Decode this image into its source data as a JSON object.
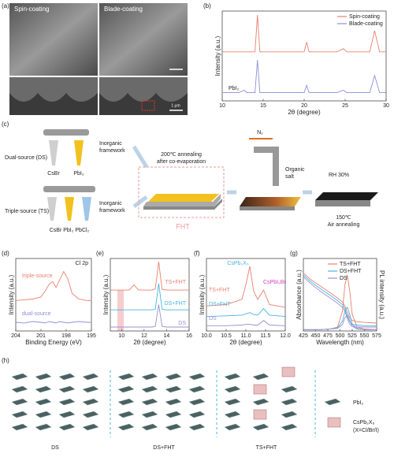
{
  "panel_labels": [
    "(a)",
    "(b)",
    "(c)",
    "(d)",
    "(e)",
    "(f)",
    "(g)",
    "(h)"
  ],
  "sem": {
    "spin": "Spin-coating",
    "blade": "Blade-coating",
    "scale": "1 μm"
  },
  "schematic": {
    "dual": "Dual-source (DS)",
    "triple": "Triple-source (TS)",
    "csbr": "CsBr",
    "pbi2": "PbI₂",
    "ts_precursors": "CsBr PbI₂ PbCl₂",
    "inorganic": "Inorganic",
    "framework": "framework",
    "anneal1": "200℃  annealing",
    "anneal2": "after co-evaporation",
    "fht": "FHT",
    "n2": "N₂",
    "organic": "Organic",
    "salt": "salt",
    "rh": "RH 30%",
    "temp": "150℃",
    "air": "Air annealing"
  },
  "structures": {
    "ds": "DS",
    "dsfht": "DS+FHT",
    "tsfht": "TS+FHT",
    "pbi2": "PbI₂",
    "cspb": "CsPb₂X₅",
    "x": "(X=Cl/Br/I)"
  },
  "chart_data": [
    {
      "type": "line",
      "x_label": "2θ (degree)",
      "y_label": "Intensity (a.u.)",
      "xlim": [
        10,
        30
      ],
      "xticks": [
        10,
        15,
        20,
        25,
        30
      ],
      "ylim": [
        0,
        110
      ],
      "legend": "upper right",
      "x": [
        10,
        12,
        12.7,
        13,
        14,
        14.3,
        14.6,
        15,
        20,
        20.3,
        20.6,
        24,
        24.8,
        25.2,
        28,
        28.6,
        29.2,
        30
      ],
      "series": [
        {
          "name": "Spin-coating",
          "color": "#e8806e",
          "values": [
            60,
            60,
            60,
            60,
            60,
            105,
            60,
            60,
            60,
            72,
            60,
            60,
            64,
            60,
            60,
            86,
            60,
            60
          ]
        },
        {
          "name": "Blade-coating",
          "color": "#8d8fd4",
          "values": [
            10,
            10,
            13,
            10,
            10,
            50,
            10,
            10,
            10,
            19,
            10,
            10,
            13,
            10,
            10,
            31,
            10,
            10
          ]
        }
      ],
      "annotations": [
        "PbI₂"
      ]
    },
    {
      "type": "line",
      "x_label": "Binding Energy (eV)",
      "y_label": "Intensity (a.u.)",
      "xlim": [
        204,
        195
      ],
      "xticks": [
        204,
        201,
        198,
        195
      ],
      "ylim": [
        0,
        100
      ],
      "x": [
        204,
        203,
        202,
        201,
        200.5,
        200,
        199.6,
        199.2,
        198.8,
        198.3,
        197.8,
        197.3,
        196.5,
        195.5,
        195
      ],
      "series": [
        {
          "name": "triple-source",
          "color": "#e8806e",
          "values": [
            42,
            43,
            44,
            47,
            55,
            65,
            68,
            60,
            70,
            82,
            72,
            52,
            44,
            42,
            42
          ]
        },
        {
          "name": "dual-source",
          "color": "#8d8fd4",
          "values": [
            12,
            11,
            13,
            12,
            11,
            13,
            12,
            11,
            13,
            12,
            11,
            12,
            13,
            12,
            12
          ]
        }
      ],
      "annotations": [
        "Cl 2p",
        "triple-source",
        "dual-source"
      ]
    },
    {
      "type": "line",
      "x_label": "2θ (degree)",
      "y_label": "Intensity (a.u.)",
      "xlim": [
        9,
        16
      ],
      "xticks": [
        10,
        12,
        14,
        16
      ],
      "ylim": [
        0,
        110
      ],
      "x": [
        9,
        10,
        10.7,
        11.1,
        11.5,
        12,
        12.7,
        13,
        13.3,
        13.6,
        14,
        15,
        16
      ],
      "series": [
        {
          "name": "TS+FHT",
          "color": "#e8806e",
          "values": [
            62,
            62,
            62,
            70,
            62,
            62,
            62,
            64,
            105,
            63,
            62,
            62,
            62
          ]
        },
        {
          "name": "DS+FHT",
          "color": "#45b4e0",
          "values": [
            32,
            32,
            32,
            32,
            32,
            32,
            32,
            33,
            72,
            33,
            32,
            32,
            32
          ]
        },
        {
          "name": "DS",
          "color": "#9b8fd0",
          "values": [
            6,
            6,
            6,
            6,
            6,
            6,
            6,
            7,
            40,
            7,
            6,
            6,
            6
          ]
        }
      ],
      "annotations": [
        "TS+FHT",
        "DS+FHT",
        "DS"
      ]
    },
    {
      "type": "line",
      "x_label": "2θ (degree)",
      "y_label": "Intensity (a.u.)",
      "xlim": [
        10,
        12
      ],
      "xticks": [
        {
          "value": 10,
          "label": "10.0"
        },
        {
          "value": 10.5,
          "label": "10.5"
        },
        {
          "value": 11,
          "label": "11.0"
        },
        {
          "value": 11.5,
          "label": "11.5"
        },
        {
          "value": 12,
          "label": "12.0"
        }
      ],
      "ylim": [
        0,
        110
      ],
      "x": [
        10,
        10.5,
        10.9,
        11.0,
        11.1,
        11.2,
        11.3,
        11.45,
        11.6,
        12
      ],
      "series": [
        {
          "name": "TS+FHT",
          "color": "#e8806e",
          "values": [
            38,
            40,
            48,
            70,
            98,
            60,
            48,
            62,
            40,
            36
          ]
        },
        {
          "name": "DS+FHT",
          "color": "#45b4e0",
          "values": [
            22,
            23,
            24,
            26,
            28,
            25,
            24,
            34,
            24,
            22
          ]
        },
        {
          "name": "DS",
          "color": "#9b8fd0",
          "values": [
            8,
            8,
            9,
            10,
            10,
            9,
            9,
            16,
            9,
            8
          ]
        }
      ],
      "annotations": [
        "CsPb₂X₅",
        "CsPbI₂Br",
        "TS+FHT",
        "DS+FHT",
        "DS"
      ]
    },
    {
      "type": "line",
      "x_label": "Wavelength (nm)",
      "y_label": "Absorbance (a.u.)",
      "y2_label": "PL intensity (a.u.)",
      "xlim": [
        425,
        575
      ],
      "xticks": [
        425,
        450,
        475,
        500,
        525,
        550,
        575
      ],
      "ylim": [
        0,
        110
      ],
      "legend": "upper right",
      "x": [
        425,
        440,
        460,
        480,
        495,
        505,
        510,
        515,
        520,
        525,
        535,
        550,
        575
      ],
      "series": [
        {
          "name": "TS+FHT",
          "color": "#e8806e",
          "values": [
            88,
            78,
            68,
            58,
            50,
            44,
            38,
            28,
            20,
            16,
            14,
            13,
            12
          ],
          "pl_values": [
            2,
            2,
            2,
            3,
            6,
            30,
            70,
            85,
            60,
            25,
            6,
            3,
            2
          ]
        },
        {
          "name": "DS+FHT",
          "color": "#45b4e0",
          "values": [
            85,
            75,
            64,
            54,
            46,
            40,
            34,
            22,
            14,
            10,
            9,
            8,
            8
          ],
          "pl_values": [
            2,
            2,
            2,
            3,
            5,
            15,
            30,
            36,
            25,
            10,
            4,
            2,
            2
          ]
        },
        {
          "name": "DS",
          "color": "#9b8fd0",
          "values": [
            82,
            72,
            60,
            50,
            42,
            36,
            30,
            18,
            10,
            7,
            6,
            6,
            6
          ],
          "pl_values": [
            2,
            2,
            2,
            3,
            4,
            10,
            20,
            24,
            16,
            7,
            3,
            2,
            2
          ]
        }
      ]
    }
  ]
}
